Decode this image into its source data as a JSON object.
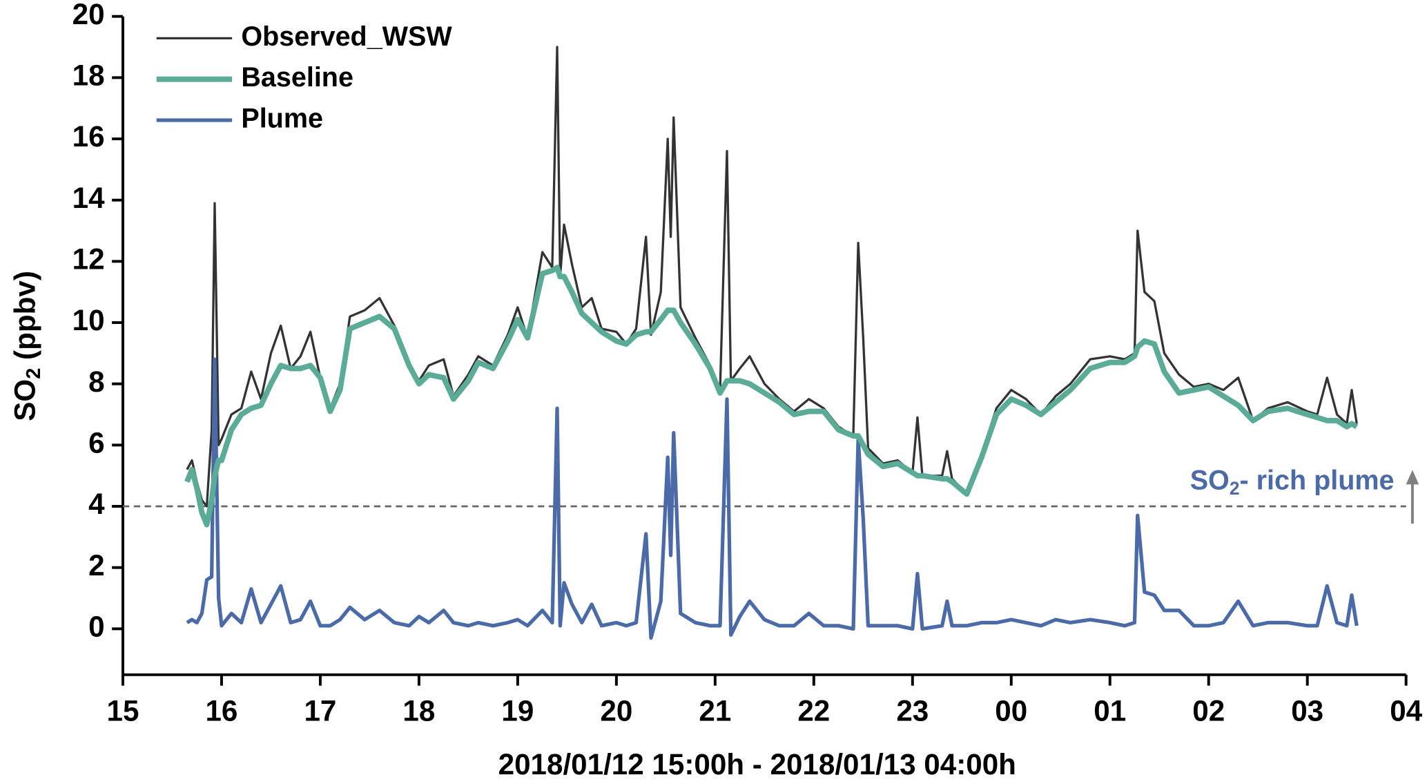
{
  "chart_data": {
    "type": "line",
    "x_label": "2018/01/12 15:00h - 2018/01/13 04:00h",
    "y_label": [
      "SO",
      "2",
      " (ppbv)"
    ],
    "annotation": [
      "SO",
      "2",
      "- rich plume"
    ],
    "threshold": 4,
    "xlim": [
      15,
      28
    ],
    "xticks": [
      15,
      16,
      17,
      18,
      19,
      20,
      21,
      22,
      23,
      {
        "value": 24,
        "label": "00"
      },
      {
        "value": 25,
        "label": "01"
      },
      {
        "value": 26,
        "label": "02"
      },
      {
        "value": 27,
        "label": "03"
      },
      {
        "value": 28,
        "label": "04"
      }
    ],
    "ylim": [
      -1.5,
      20
    ],
    "yticks": [
      0,
      2,
      4,
      6,
      8,
      10,
      12,
      14,
      16,
      18,
      20
    ],
    "x": [
      15.65,
      15.7,
      15.75,
      15.8,
      15.85,
      15.9,
      15.93,
      15.97,
      16.0,
      16.1,
      16.2,
      16.3,
      16.4,
      16.5,
      16.6,
      16.7,
      16.8,
      16.9,
      17.0,
      17.1,
      17.2,
      17.3,
      17.45,
      17.6,
      17.75,
      17.9,
      18.0,
      18.1,
      18.25,
      18.35,
      18.5,
      18.6,
      18.75,
      18.9,
      19.0,
      19.1,
      19.25,
      19.35,
      19.4,
      19.43,
      19.47,
      19.55,
      19.65,
      19.75,
      19.85,
      20.0,
      20.1,
      20.2,
      20.3,
      20.35,
      20.45,
      20.52,
      20.55,
      20.58,
      20.65,
      20.8,
      20.95,
      21.05,
      21.12,
      21.16,
      21.25,
      21.35,
      21.5,
      21.65,
      21.8,
      21.95,
      22.1,
      22.25,
      22.4,
      22.45,
      22.5,
      22.55,
      22.7,
      22.85,
      23.0,
      23.05,
      23.1,
      23.3,
      23.35,
      23.4,
      23.55,
      23.7,
      23.85,
      24.0,
      24.15,
      24.3,
      24.45,
      24.6,
      24.8,
      25.0,
      25.15,
      25.25,
      25.28,
      25.35,
      25.45,
      25.55,
      25.7,
      25.85,
      26.0,
      26.15,
      26.3,
      26.45,
      26.6,
      26.8,
      27.0,
      27.1,
      27.2,
      27.3,
      27.4,
      27.45,
      27.5
    ],
    "series": [
      {
        "name": "Observed_WSW",
        "color": "#333333",
        "width": 2.5,
        "values": [
          5.2,
          5.5,
          4.8,
          4.2,
          4.0,
          6.5,
          13.9,
          6.0,
          6.2,
          7.0,
          7.2,
          8.4,
          7.5,
          9.0,
          9.9,
          8.5,
          8.9,
          9.7,
          8.2,
          7.2,
          8.0,
          10.2,
          10.4,
          10.8,
          9.9,
          8.7,
          8.1,
          8.6,
          8.8,
          7.6,
          8.3,
          8.9,
          8.6,
          9.6,
          10.5,
          9.5,
          12.3,
          11.8,
          19.0,
          11.5,
          13.2,
          11.9,
          10.5,
          10.8,
          9.8,
          9.7,
          9.3,
          9.8,
          12.8,
          9.6,
          11.0,
          16.0,
          12.8,
          16.7,
          10.5,
          9.5,
          8.6,
          7.8,
          15.6,
          8.1,
          8.5,
          8.9,
          8.0,
          7.5,
          7.1,
          7.5,
          7.2,
          6.6,
          6.3,
          12.6,
          9.5,
          5.9,
          5.4,
          5.5,
          5.1,
          6.9,
          5.0,
          5.0,
          5.8,
          4.9,
          4.4,
          5.7,
          7.2,
          7.8,
          7.5,
          7.0,
          7.6,
          8.0,
          8.8,
          8.9,
          8.8,
          9.0,
          13.0,
          11.0,
          10.7,
          9.0,
          8.3,
          7.9,
          8.0,
          7.8,
          8.2,
          6.8,
          7.2,
          7.4,
          7.1,
          7.0,
          8.2,
          7.0,
          6.7,
          7.8,
          6.7
        ]
      },
      {
        "name": "Baseline",
        "color": "#5aab97",
        "width": 6,
        "values": [
          4.8,
          5.2,
          4.6,
          3.8,
          3.4,
          4.2,
          5.0,
          5.5,
          5.5,
          6.5,
          7.0,
          7.2,
          7.3,
          8.0,
          8.6,
          8.5,
          8.5,
          8.6,
          8.2,
          7.1,
          7.8,
          9.8,
          10.0,
          10.2,
          9.8,
          8.6,
          8.0,
          8.3,
          8.2,
          7.5,
          8.1,
          8.7,
          8.5,
          9.4,
          10.1,
          9.5,
          11.6,
          11.7,
          11.8,
          11.5,
          11.5,
          11.0,
          10.3,
          10.0,
          9.7,
          9.4,
          9.3,
          9.6,
          9.7,
          9.7,
          10.1,
          10.4,
          10.4,
          10.4,
          10.0,
          9.3,
          8.5,
          7.7,
          8.1,
          8.1,
          8.1,
          8.0,
          7.7,
          7.4,
          7.0,
          7.1,
          7.1,
          6.5,
          6.3,
          6.3,
          6.0,
          5.7,
          5.3,
          5.4,
          5.1,
          5.0,
          5.0,
          4.9,
          4.9,
          4.8,
          4.4,
          5.6,
          7.0,
          7.5,
          7.3,
          7.0,
          7.4,
          7.8,
          8.5,
          8.7,
          8.7,
          8.9,
          9.2,
          9.4,
          9.3,
          8.4,
          7.7,
          7.8,
          7.9,
          7.6,
          7.3,
          6.8,
          7.1,
          7.2,
          7.0,
          6.9,
          6.8,
          6.8,
          6.6,
          6.7,
          6.6
        ]
      },
      {
        "name": "Plume",
        "color": "#4a6aa8",
        "width": 4,
        "values": [
          0.2,
          0.3,
          0.2,
          0.5,
          1.6,
          1.7,
          8.8,
          1.0,
          0.1,
          0.5,
          0.2,
          1.3,
          0.2,
          0.8,
          1.4,
          0.2,
          0.3,
          0.9,
          0.1,
          0.1,
          0.3,
          0.7,
          0.3,
          0.6,
          0.2,
          0.1,
          0.4,
          0.2,
          0.6,
          0.2,
          0.1,
          0.2,
          0.1,
          0.2,
          0.3,
          0.1,
          0.6,
          0.2,
          7.2,
          0.1,
          1.5,
          0.8,
          0.2,
          0.8,
          0.1,
          0.2,
          0.1,
          0.2,
          3.1,
          -0.3,
          0.9,
          5.6,
          2.4,
          6.4,
          0.5,
          0.2,
          0.1,
          0.1,
          7.5,
          -0.2,
          0.4,
          0.9,
          0.3,
          0.1,
          0.1,
          0.5,
          0.1,
          0.1,
          0.0,
          6.2,
          3.6,
          0.1,
          0.1,
          0.1,
          0.0,
          1.8,
          0.0,
          0.1,
          0.9,
          0.1,
          0.1,
          0.2,
          0.2,
          0.3,
          0.2,
          0.1,
          0.3,
          0.2,
          0.3,
          0.2,
          0.1,
          0.2,
          3.7,
          1.2,
          1.1,
          0.6,
          0.6,
          0.1,
          0.1,
          0.2,
          0.9,
          0.1,
          0.2,
          0.2,
          0.1,
          0.1,
          1.4,
          0.2,
          0.1,
          1.1,
          0.1
        ]
      }
    ]
  }
}
